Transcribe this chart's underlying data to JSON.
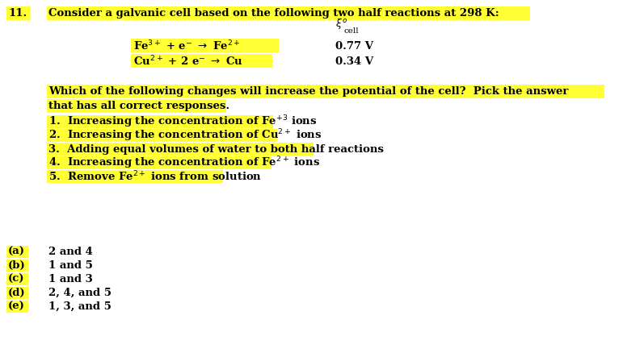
{
  "bg_color": "#ffffff",
  "highlight_yellow": "#FFFF33",
  "text_color": "#000000",
  "figsize": [
    7.71,
    4.43
  ],
  "dpi": 100,
  "number": "11.",
  "title_text": "Consider a galvanic cell based on the following two half reactions at 298 K:",
  "value1": "0.77 V",
  "value2": "0.34 V",
  "question_line1": "Which of the following changes will increase the potential of the cell?  Pick the answer",
  "question_line2": "that has all correct responses.",
  "item3": "3.  Adding equal volumes of water to both half reactions",
  "choices_letter": [
    "(a)",
    "(b)",
    "(c)",
    "(d)",
    "(e)"
  ],
  "choices_text": [
    "2 and 4",
    "1 and 5",
    "1 and 3",
    "2, 4, and 5",
    "1, 3, and 5"
  ]
}
